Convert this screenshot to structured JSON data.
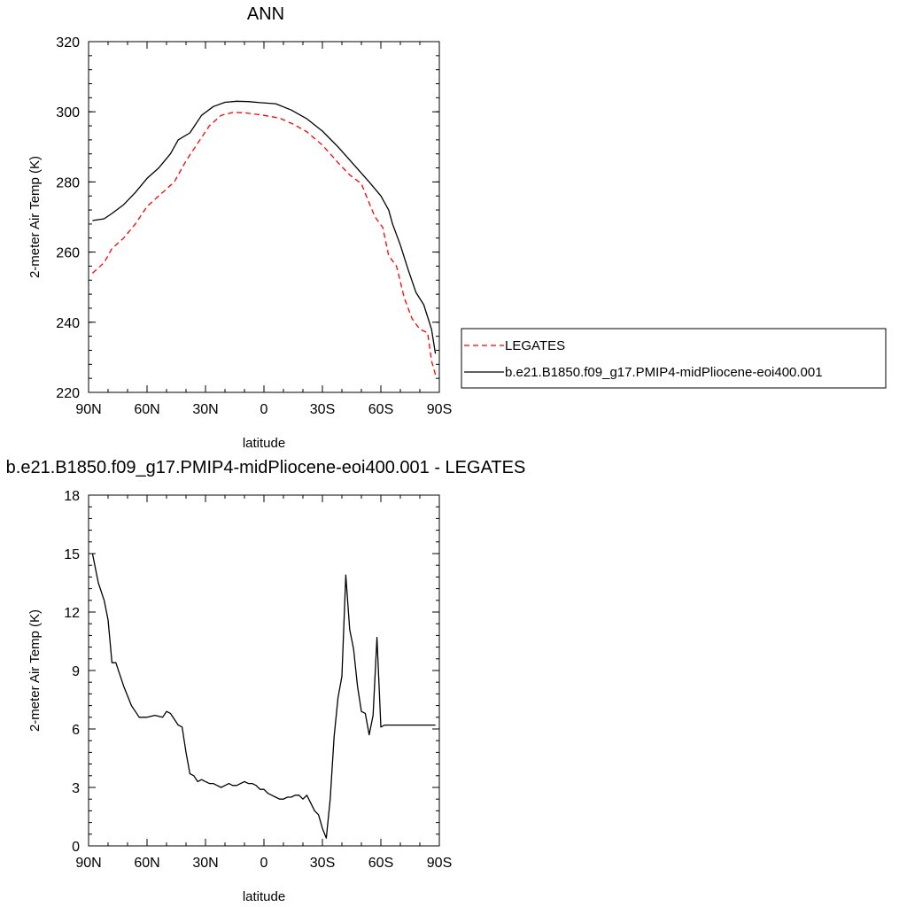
{
  "chart_data": [
    {
      "type": "line",
      "title": "ANN",
      "xlabel": "latitude",
      "ylabel": "2-meter Air Temp (K)",
      "xlim": [
        90,
        -90
      ],
      "ylim": [
        220,
        320
      ],
      "x_ticks": [
        90,
        60,
        30,
        0,
        -30,
        -60,
        -90
      ],
      "x_tick_labels": [
        "90N",
        "60N",
        "30N",
        "0",
        "30S",
        "60S",
        "90S"
      ],
      "y_ticks": [
        220,
        240,
        260,
        280,
        300,
        320
      ],
      "y_tick_labels": [
        "220",
        "240",
        "260",
        "280",
        "300",
        "320"
      ],
      "grid": false,
      "legend_position": "right",
      "series": [
        {
          "name": "LEGATES",
          "color": "#ff0000",
          "dash": "dashed",
          "x": [
            88,
            82,
            78,
            72,
            66,
            60,
            52,
            46,
            40,
            34,
            28,
            22,
            16,
            10,
            4,
            0,
            -8,
            -15,
            -22,
            -30,
            -38,
            -44,
            -50,
            -54,
            -57,
            -61,
            -64,
            -68,
            -72,
            -76,
            -80,
            -84,
            -86,
            -88
          ],
          "y": [
            254,
            257,
            261,
            264,
            268,
            273,
            277,
            280,
            286,
            291,
            296,
            299,
            299.8,
            299.7,
            299.3,
            299,
            298.2,
            296.5,
            294.3,
            290.5,
            285.5,
            282,
            279.5,
            274,
            270,
            267,
            259,
            256,
            247,
            241,
            238,
            237,
            229,
            225
          ]
        },
        {
          "name": "b.e21.B1850.f09_g17.PMIP4-midPliocene-eoi400.001",
          "color": "#000000",
          "dash": "solid",
          "x": [
            88,
            82,
            78,
            72,
            66,
            60,
            54,
            48,
            44,
            38,
            32,
            26,
            20,
            14,
            8,
            2,
            -6,
            -14,
            -22,
            -30,
            -38,
            -46,
            -54,
            -60,
            -64,
            -66,
            -70,
            -74,
            -78,
            -82,
            -86,
            -88
          ],
          "y": [
            269,
            269.5,
            271,
            273.5,
            277,
            281,
            284,
            288,
            292,
            294,
            299,
            301.5,
            302.7,
            303,
            302.9,
            302.6,
            302.3,
            300.5,
            298,
            294.5,
            290,
            285,
            280,
            276,
            272,
            268,
            262,
            255,
            248.5,
            245,
            238,
            231
          ]
        }
      ]
    },
    {
      "type": "line",
      "title": "b.e21.B1850.f09_g17.PMIP4-midPliocene-eoi400.001 - LEGATES",
      "xlabel": "latitude",
      "ylabel": "2-meter Air Temp (K)",
      "xlim": [
        90,
        -90
      ],
      "ylim": [
        0,
        18
      ],
      "x_ticks": [
        90,
        60,
        30,
        0,
        -30,
        -60,
        -90
      ],
      "x_tick_labels": [
        "90N",
        "60N",
        "30N",
        "0",
        "30S",
        "60S",
        "90S"
      ],
      "y_ticks": [
        0,
        3,
        6,
        9,
        12,
        15,
        18
      ],
      "y_tick_labels": [
        "0",
        "3",
        "6",
        "9",
        "12",
        "15",
        "18"
      ],
      "grid": false,
      "series": [
        {
          "color": "#000000",
          "dash": "solid",
          "x": [
            88,
            85,
            82,
            80,
            78,
            76,
            74,
            72,
            70,
            68,
            66,
            64,
            62,
            60,
            56,
            52,
            50,
            48,
            46,
            44,
            42,
            40,
            38,
            36,
            34,
            32,
            30,
            28,
            26,
            24,
            22,
            20,
            18,
            16,
            14,
            12,
            10,
            8,
            6,
            4,
            2,
            0,
            -2,
            -4,
            -6,
            -8,
            -10,
            -12,
            -14,
            -16,
            -18,
            -20,
            -22,
            -24,
            -26,
            -28,
            -30,
            -32,
            -34,
            -36,
            -38,
            -40,
            -42,
            -44,
            -46,
            -48,
            -50,
            -52,
            -54,
            -56,
            -58,
            -60,
            -62,
            -64,
            -66,
            -68,
            -70,
            -72,
            -74,
            -76,
            -78,
            -80,
            -82,
            -84,
            -86,
            -88
          ],
          "y": [
            15.0,
            13.5,
            12.6,
            11.6,
            9.4,
            9.4,
            8.8,
            8.2,
            7.7,
            7.2,
            6.9,
            6.6,
            6.6,
            6.6,
            6.7,
            6.6,
            6.9,
            6.8,
            6.5,
            6.2,
            6.1,
            4.8,
            3.7,
            3.6,
            3.3,
            3.4,
            3.3,
            3.2,
            3.2,
            3.1,
            3.0,
            3.1,
            3.2,
            3.1,
            3.1,
            3.2,
            3.3,
            3.2,
            3.2,
            3.1,
            2.9,
            2.9,
            2.7,
            2.6,
            2.5,
            2.4,
            2.4,
            2.5,
            2.5,
            2.6,
            2.6,
            2.4,
            2.6,
            2.2,
            1.8,
            1.6,
            0.9,
            0.4,
            2.4,
            5.6,
            7.6,
            8.7,
            13.9,
            11.1,
            10.1,
            8.2,
            6.9,
            6.8,
            5.7,
            6.7,
            10.7,
            6.1,
            6.2,
            6.2,
            6.2,
            6.2,
            6.2,
            6.2,
            6.2,
            6.2,
            6.2,
            6.2,
            6.2,
            6.2,
            6.2,
            6.2
          ]
        }
      ]
    }
  ]
}
